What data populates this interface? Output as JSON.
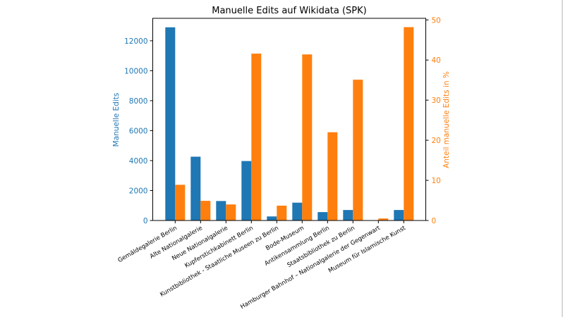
{
  "chart_data": {
    "type": "bar",
    "title": "Manuelle Edits auf Wikidata (SPK)",
    "xlabel": "",
    "ylabel": "Manuelle Edits",
    "y2label": "Anteil manuelle Edits in %",
    "categories": [
      "Gemäldegalerie Berlin",
      "Alte Nationalgalerie",
      "Neue Nationalgalerie",
      "Kupferstichkabinett Berlin",
      "Kunstbibliothek - Staatliche Museen zu Berlin",
      "Bode-Museum",
      "Antikensammlung Berlin",
      "Staatsbibliothek zu Berlin",
      "Hamburger Bahnhof – Nationalgalerie der Gegenwart",
      "Museum für Islamische Kunst"
    ],
    "series": [
      {
        "name": "Manuelle Edits",
        "axis": "left",
        "color": "#1f77b4",
        "values": [
          12900,
          4260,
          1300,
          3970,
          270,
          1190,
          560,
          700,
          0,
          700
        ]
      },
      {
        "name": "Anteil manuelle Edits in %",
        "axis": "right",
        "color": "#ff7f0e",
        "values": [
          8.9,
          4.9,
          4.0,
          41.6,
          3.7,
          41.4,
          22.0,
          35.1,
          0.5,
          48.2
        ]
      }
    ],
    "ylim": [
      0,
      13500
    ],
    "y2lim": [
      0,
      50.4
    ],
    "yticks": [
      0,
      2000,
      4000,
      6000,
      8000,
      10000,
      12000
    ],
    "y2ticks": [
      0,
      10,
      20,
      30,
      40,
      50
    ],
    "grid": false,
    "legend": "none",
    "left_axis_color": "#1f77b4",
    "right_axis_color": "#ff7f0e"
  }
}
